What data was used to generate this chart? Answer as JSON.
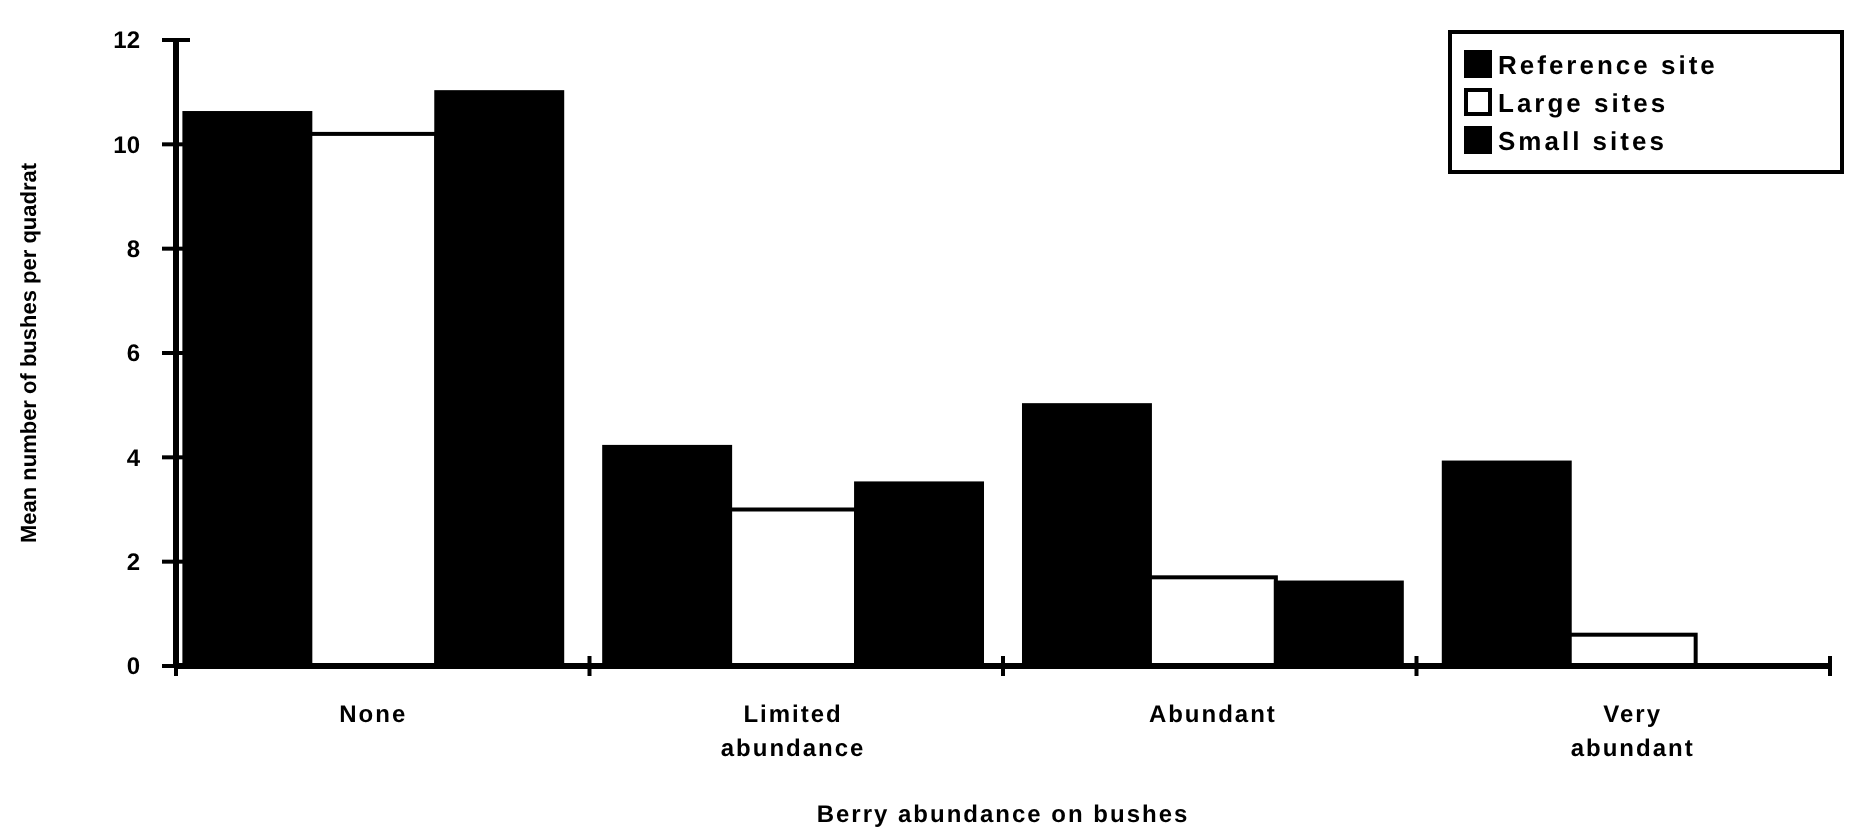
{
  "chart_data": {
    "type": "bar",
    "xlabel": "Berry abundance on bushes",
    "ylabel": "Mean number of bushes per quadrat",
    "categories": [
      "None",
      "Limited abundance",
      "Abundant",
      "Very abundant"
    ],
    "series": [
      {
        "name": "Reference site",
        "color": "#000000",
        "values": [
          10.6,
          4.2,
          5.0,
          3.9
        ]
      },
      {
        "name": "Large sites",
        "color": "#ffffff",
        "values": [
          10.2,
          3.0,
          1.7,
          0.6
        ]
      },
      {
        "name": "Small sites",
        "color": "#000000",
        "values": [
          11.0,
          3.5,
          1.6,
          0
        ]
      }
    ],
    "ylim": [
      0,
      12
    ],
    "yticks": [
      0,
      2,
      4,
      6,
      8,
      10,
      12
    ],
    "grid": false,
    "legend": "top right"
  }
}
